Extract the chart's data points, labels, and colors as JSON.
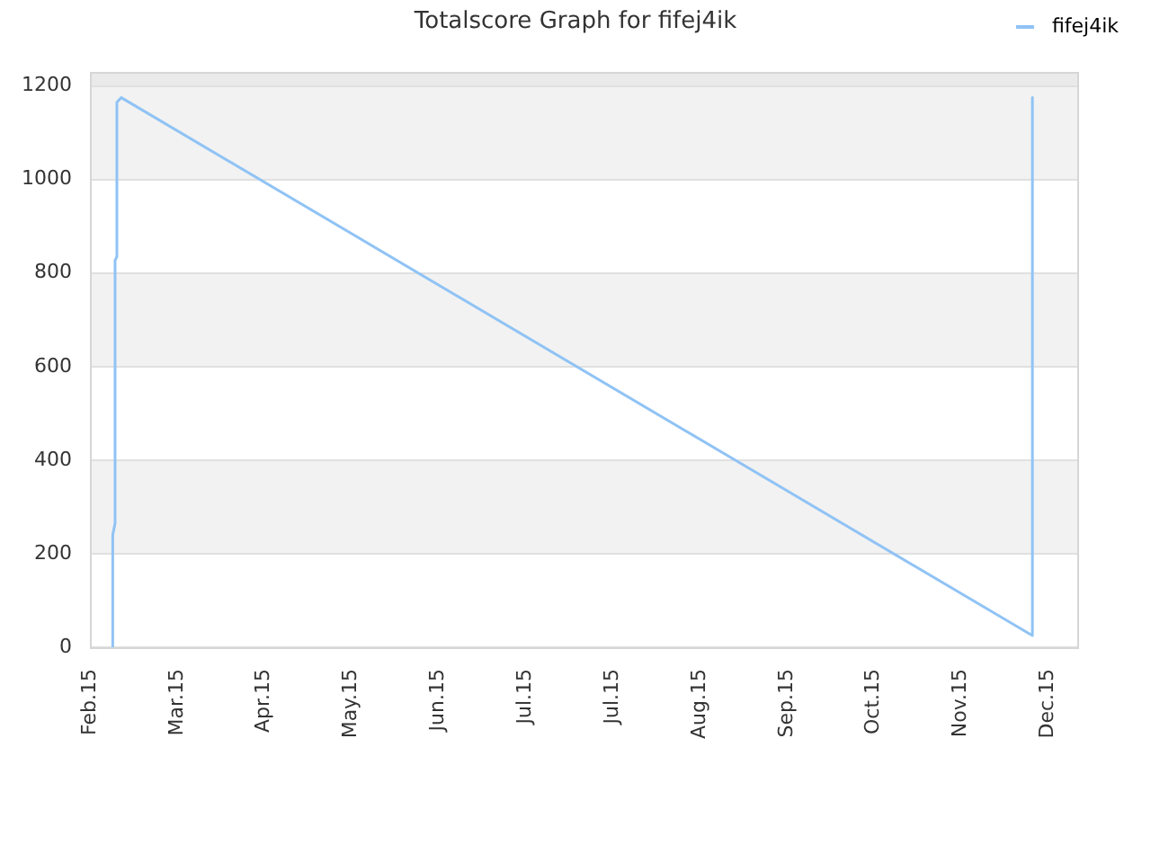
{
  "chart_data": {
    "type": "line",
    "title": "Totalscore Graph for fifej4ik",
    "series": [
      {
        "name": "fifej4ik",
        "color": "#90c3f5",
        "x": [
          "2015-02-19T08:00",
          "2015-02-19T08:00",
          "2015-02-20T02:00",
          "2015-02-20T02:00",
          "2015-02-20T16:00",
          "2015-02-20T16:00",
          "2015-02-22T02:00",
          "2015-12-12",
          "2015-12-12"
        ],
        "values": [
          0,
          240,
          265,
          827,
          835,
          1165,
          1175,
          25,
          1175
        ]
      }
    ],
    "xlim": [
      "2015-02-12",
      "2015-12-27"
    ],
    "xticks": [
      {
        "value": "2015-02-12",
        "label": "Feb.15"
      },
      {
        "value": "2015-03-12",
        "label": "Mar.15"
      },
      {
        "value": "2015-04-09",
        "label": "Apr.15"
      },
      {
        "value": "2015-05-07",
        "label": "May.15"
      },
      {
        "value": "2015-06-04",
        "label": "Jun.15"
      },
      {
        "value": "2015-07-02",
        "label": "Jul.15"
      },
      {
        "value": "2015-07-30",
        "label": "Jul.15"
      },
      {
        "value": "2015-08-27",
        "label": "Aug.15"
      },
      {
        "value": "2015-09-24",
        "label": "Sep.15"
      },
      {
        "value": "2015-10-22",
        "label": "Oct.15"
      },
      {
        "value": "2015-11-19",
        "label": "Nov.15"
      },
      {
        "value": "2015-12-17",
        "label": "Dec.15"
      }
    ],
    "ylim": [
      0,
      1230
    ],
    "yticks": [
      0,
      200,
      400,
      600,
      800,
      1000,
      1200
    ],
    "bands": [
      {
        "axis": "y",
        "from": 200,
        "to": 400,
        "color": "#f2f2f2"
      },
      {
        "axis": "y",
        "from": 600,
        "to": 800,
        "color": "#f2f2f2"
      },
      {
        "axis": "y",
        "from": 1000,
        "to": 1200,
        "color": "#f2f2f2"
      },
      {
        "axis": "y",
        "from": 1200,
        "to": 1230,
        "color": "#eaeaea"
      }
    ],
    "grid": "y",
    "legend": "top right"
  }
}
